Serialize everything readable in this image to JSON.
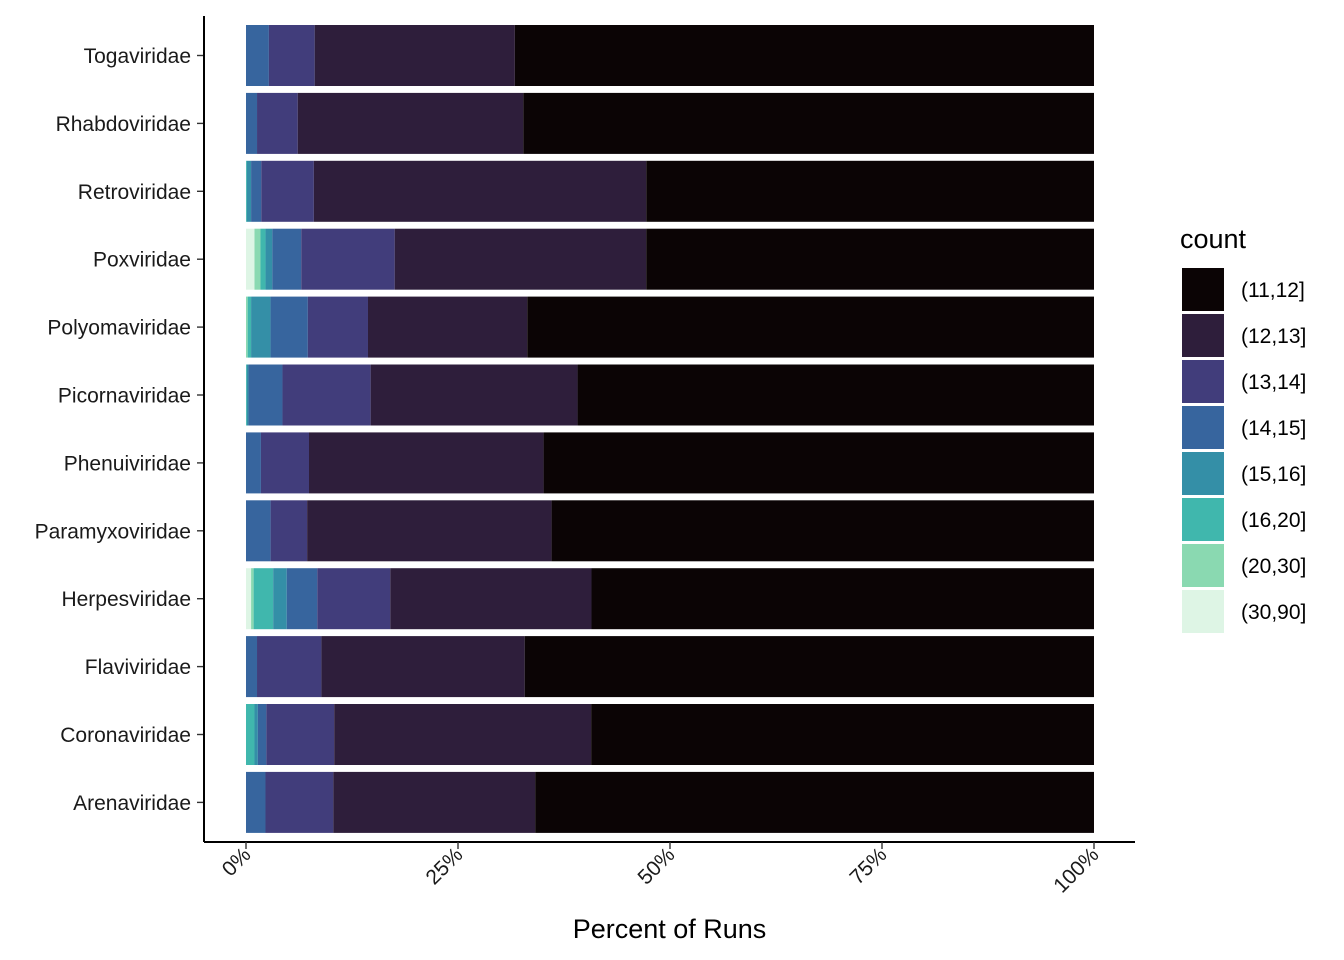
{
  "chart_data": {
    "type": "bar",
    "orientation": "horizontal",
    "stacked": true,
    "normalized_percent": true,
    "title": "",
    "xlabel": "Percent of Runs",
    "ylabel": "",
    "xlim": [
      0,
      100
    ],
    "x_ticks": [
      "0%",
      "25%",
      "50%",
      "75%",
      "100%"
    ],
    "x_tick_values": [
      0,
      25,
      50,
      75,
      100
    ],
    "grid": false,
    "legend": {
      "title": "count",
      "position": "right"
    },
    "categories": [
      "Togaviridae",
      "Rhabdoviridae",
      "Retroviridae",
      "Poxviridae",
      "Polyomaviridae",
      "Picornaviridae",
      "Phenuiviridae",
      "Paramyxoviridae",
      "Herpesviridae",
      "Flaviviridae",
      "Coronaviridae",
      "Arenaviridae"
    ],
    "stack_order_from_zero": [
      "(30,90]",
      "(20,30]",
      "(16,20]",
      "(15,16]",
      "(14,15]",
      "(13,14]",
      "(12,13]",
      "(11,12]"
    ],
    "series": [
      {
        "name": "(11,12]",
        "color": "#0b0405",
        "values": [
          68.3,
          67.3,
          52.8,
          52.7,
          66.9,
          60.9,
          66.4,
          63.9,
          59.2,
          67.2,
          59.3,
          65.9
        ]
      },
      {
        "name": "(12,13]",
        "color": "#2e1e3b",
        "values": [
          23.6,
          26.6,
          39.2,
          29.6,
          18.8,
          24.4,
          28.3,
          28.8,
          23.7,
          24.0,
          30.3,
          23.8
        ]
      },
      {
        "name": "(13,14]",
        "color": "#413d7b",
        "values": [
          5.4,
          4.8,
          6.2,
          11.0,
          7.1,
          10.4,
          5.8,
          4.3,
          8.6,
          7.6,
          8.0,
          8.0
        ]
      },
      {
        "name": "(14,15]",
        "color": "#37659e",
        "values": [
          2.7,
          1.3,
          1.2,
          3.4,
          4.4,
          4.0,
          1.8,
          2.9,
          3.6,
          1.3,
          1.0,
          2.3
        ]
      },
      {
        "name": "(15,16]",
        "color": "#348fa7",
        "values": [
          0,
          0,
          0.5,
          0.8,
          2.3,
          0.2,
          0,
          0,
          1.6,
          0,
          0.4,
          0
        ]
      },
      {
        "name": "(16,20]",
        "color": "#40b7ad",
        "values": [
          0,
          0,
          0.1,
          0.6,
          0.4,
          0.1,
          0,
          0,
          2.3,
          0,
          1.0,
          0
        ]
      },
      {
        "name": "(20,30]",
        "color": "#8ad9b1",
        "values": [
          0,
          0,
          0,
          0.7,
          0.2,
          0,
          0,
          0,
          0.3,
          0,
          0,
          0
        ]
      },
      {
        "name": "(30,90]",
        "color": "#def5e5",
        "values": [
          0,
          0,
          0,
          1.0,
          0,
          0,
          0,
          0,
          0.6,
          0,
          0,
          0
        ]
      }
    ]
  }
}
